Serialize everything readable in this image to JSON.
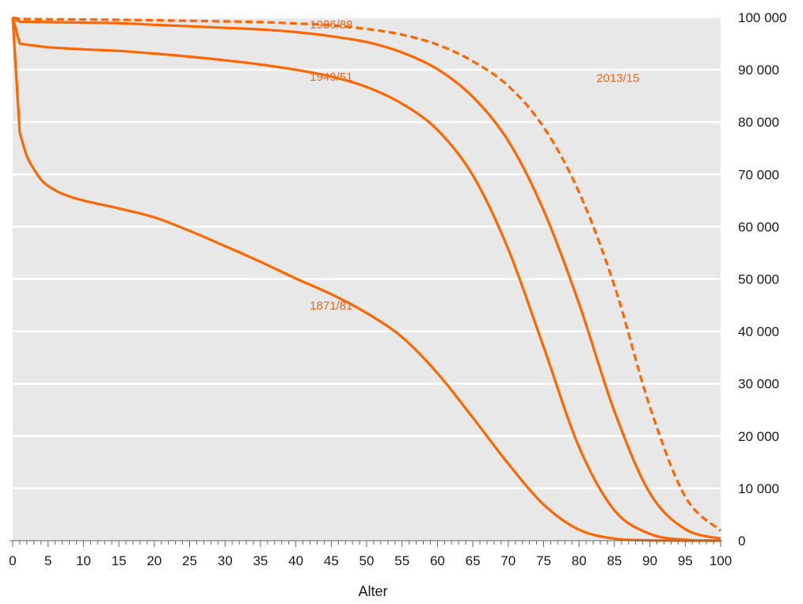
{
  "chart_data": {
    "type": "line",
    "title": "",
    "xlabel": "Alter",
    "ylabel": "",
    "xlim": [
      0,
      100
    ],
    "ylim": [
      0,
      100000
    ],
    "grid": true,
    "x_ticks": [
      0,
      5,
      10,
      15,
      20,
      25,
      30,
      35,
      40,
      45,
      50,
      55,
      60,
      65,
      70,
      75,
      80,
      85,
      90,
      95,
      100
    ],
    "y_tick_values": [
      0,
      10000,
      20000,
      30000,
      40000,
      50000,
      60000,
      70000,
      80000,
      90000,
      100000
    ],
    "y_tick_labels": [
      "0",
      "10 000",
      "20 000",
      "30 000",
      "40 000",
      "50 000",
      "60 000",
      "70 000",
      "80 000",
      "90 000",
      "100 000"
    ],
    "series": [
      {
        "name": "1871/81",
        "dashed": false,
        "color": "#ff6600",
        "x": [
          0,
          1,
          2,
          3,
          4,
          5,
          7,
          10,
          15,
          20,
          25,
          30,
          35,
          40,
          45,
          50,
          55,
          60,
          65,
          70,
          75,
          80,
          85,
          90,
          95,
          100
        ],
        "y": [
          100000,
          78000,
          73500,
          71000,
          69000,
          67800,
          66300,
          65000,
          63500,
          61800,
          59200,
          56300,
          53300,
          50100,
          47100,
          43500,
          38900,
          32000,
          23500,
          14700,
          6900,
          2100,
          400,
          60,
          5,
          0
        ]
      },
      {
        "name": "1949/51",
        "dashed": false,
        "color": "#ff6600",
        "x": [
          0,
          1,
          2,
          5,
          10,
          15,
          20,
          25,
          30,
          35,
          40,
          45,
          50,
          55,
          60,
          65,
          70,
          75,
          80,
          85,
          90,
          95,
          100
        ],
        "y": [
          100000,
          95000,
          94800,
          94300,
          93900,
          93600,
          93100,
          92500,
          91800,
          91000,
          90000,
          88700,
          86700,
          83500,
          78500,
          69800,
          55700,
          37000,
          17900,
          5800,
          1300,
          180,
          15
        ]
      },
      {
        "name": "1986/88",
        "dashed": false,
        "color": "#ff6600",
        "x": [
          0,
          1,
          5,
          10,
          15,
          20,
          25,
          30,
          35,
          40,
          45,
          50,
          55,
          60,
          65,
          70,
          75,
          80,
          85,
          90,
          95,
          100
        ],
        "y": [
          100000,
          99200,
          99100,
          99000,
          98900,
          98600,
          98300,
          98000,
          97700,
          97200,
          96400,
          95300,
          93300,
          90100,
          84800,
          76400,
          63100,
          45300,
          24700,
          9100,
          2200,
          400
        ]
      },
      {
        "name": "2013/15",
        "dashed": true,
        "color": "#ff6600",
        "x": [
          0,
          1,
          5,
          10,
          15,
          20,
          25,
          30,
          35,
          40,
          45,
          50,
          55,
          60,
          65,
          70,
          75,
          80,
          85,
          90,
          95,
          100
        ],
        "y": [
          100000,
          99700,
          99650,
          99600,
          99550,
          99450,
          99350,
          99250,
          99100,
          98850,
          98500,
          97800,
          96700,
          94800,
          91600,
          86900,
          79000,
          66600,
          48700,
          25600,
          8400,
          1900
        ]
      }
    ],
    "annotations": [
      {
        "text": "1986/88",
        "x": 45,
        "y": 97900
      },
      {
        "text": "1949/51",
        "x": 45,
        "y": 87900
      },
      {
        "text": "2013/15",
        "x": 85.5,
        "y": 87700
      },
      {
        "text": "1871/81",
        "x": 45,
        "y": 44200
      }
    ]
  }
}
